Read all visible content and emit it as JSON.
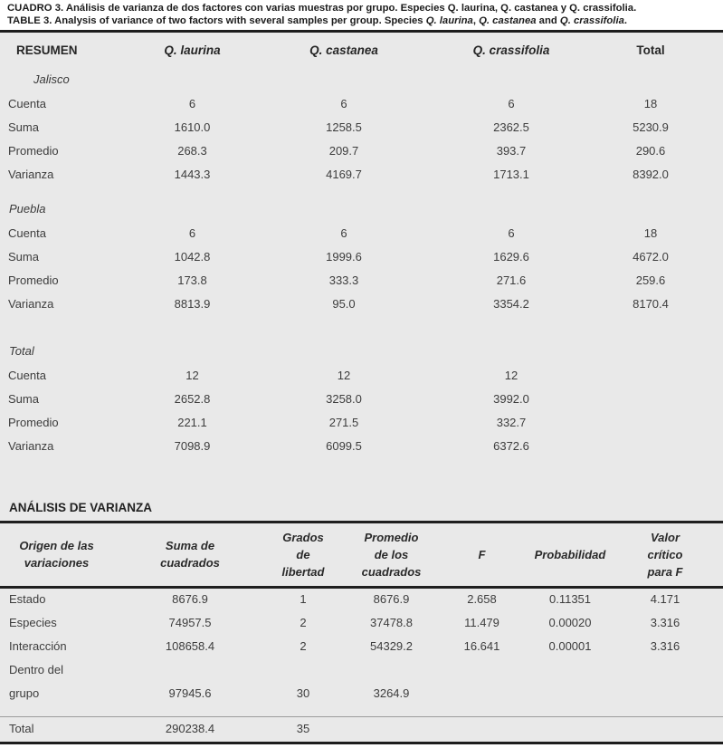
{
  "title": {
    "line1": "CUADRO 3. Análisis de varianza de dos factores con varias muestras por grupo. Especies Q. laurina, Q. castanea y Q. crassifolia.",
    "line2_parts": [
      {
        "text": "TABLE 3. Analysis of variance of two factors with several samples per group. Species ",
        "italic": false
      },
      {
        "text": "Q. laurina",
        "italic": true
      },
      {
        "text": ", ",
        "italic": false
      },
      {
        "text": "Q. castanea",
        "italic": true
      },
      {
        "text": " and ",
        "italic": false
      },
      {
        "text": "Q. crassifolia",
        "italic": true
      },
      {
        "text": ".",
        "italic": false
      }
    ]
  },
  "summary": {
    "columns": [
      "RESUMEN",
      "Q. laurina",
      "Q. castanea",
      "Q. crassifolia",
      "Total"
    ],
    "groups": [
      {
        "name": "Jalisco",
        "rows": [
          {
            "label": "Cuenta",
            "values": [
              "6",
              "6",
              "6",
              "18"
            ]
          },
          {
            "label": "Suma",
            "values": [
              "1610.0",
              "1258.5",
              "2362.5",
              "5230.9"
            ]
          },
          {
            "label": "Promedio",
            "values": [
              "268.3",
              "209.7",
              "393.7",
              "290.6"
            ]
          },
          {
            "label": "Varianza",
            "values": [
              "1443.3",
              "4169.7",
              "1713.1",
              "8392.0"
            ]
          }
        ]
      },
      {
        "name": "Puebla",
        "rows": [
          {
            "label": "Cuenta",
            "values": [
              "6",
              "6",
              "6",
              "18"
            ]
          },
          {
            "label": "Suma",
            "values": [
              "1042.8",
              "1999.6",
              "1629.6",
              "4672.0"
            ]
          },
          {
            "label": "Promedio",
            "values": [
              "173.8",
              "333.3",
              "271.6",
              "259.6"
            ]
          },
          {
            "label": "Varianza",
            "values": [
              "8813.9",
              "95.0",
              "3354.2",
              "8170.4"
            ]
          }
        ]
      },
      {
        "name": "Total",
        "rows": [
          {
            "label": "Cuenta",
            "values": [
              "12",
              "12",
              "12",
              ""
            ]
          },
          {
            "label": "Suma",
            "values": [
              "2652.8",
              "3258.0",
              "3992.0",
              ""
            ]
          },
          {
            "label": "Promedio",
            "values": [
              "221.1",
              "271.5",
              "332.7",
              ""
            ]
          },
          {
            "label": "Varianza",
            "values": [
              "7098.9",
              "6099.5",
              "6372.6",
              ""
            ]
          }
        ]
      }
    ]
  },
  "anova": {
    "heading": "ANÁLISIS DE VARIANZA",
    "columns": [
      "Origen de las\nvariaciones",
      "Suma de\ncuadrados",
      "Grados\nde\nlibertad",
      "Promedio\nde los\ncuadrados",
      "F",
      "Probabilidad",
      "Valor\ncrítico\npara F"
    ],
    "rows": [
      {
        "label": "Estado",
        "values": [
          "8676.9",
          "1",
          "8676.9",
          "2.658",
          "0.11351",
          "4.171"
        ]
      },
      {
        "label": "Especies",
        "values": [
          "74957.5",
          "2",
          "37478.8",
          "11.479",
          "0.00020",
          "3.316"
        ]
      },
      {
        "label": "Interacción",
        "values": [
          "108658.4",
          "2",
          "54329.2",
          "16.641",
          "0.00001",
          "3.316"
        ]
      },
      {
        "label": "Dentro del",
        "values": [
          "",
          "",
          "",
          "",
          "",
          ""
        ]
      },
      {
        "label": "grupo",
        "values": [
          "97945.6",
          "30",
          "3264.9",
          "",
          "",
          ""
        ]
      },
      {
        "label": "Total",
        "values": [
          "290238.4",
          "35",
          "",
          "",
          "",
          ""
        ]
      }
    ]
  }
}
